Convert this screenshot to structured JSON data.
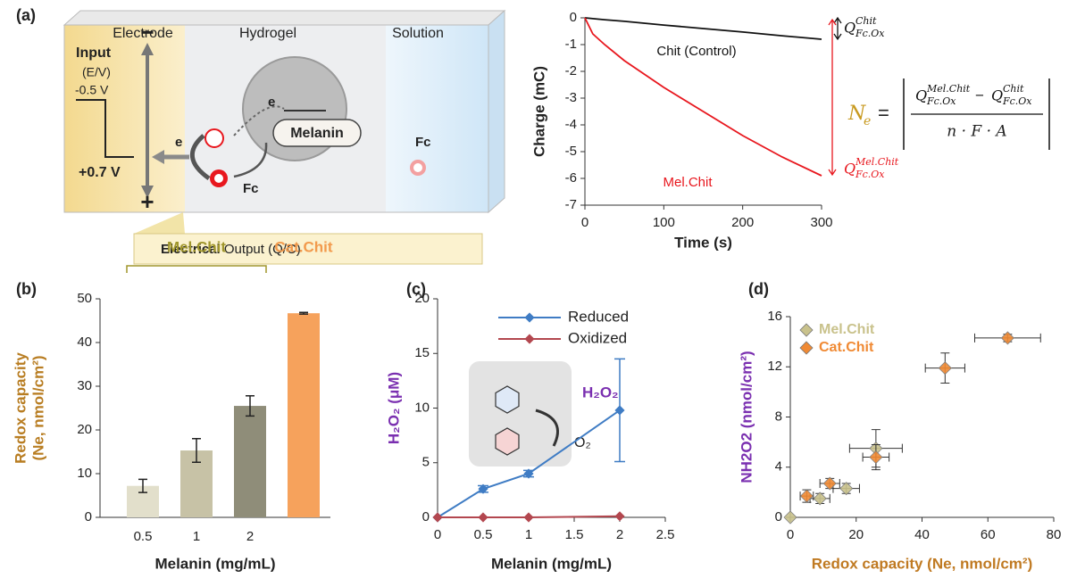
{
  "schematic": {
    "electrode": "Electrode",
    "hydrogel": "Hydrogel",
    "solution": "Solution",
    "input": "Input",
    "input_unit": "(E/V)",
    "v_low": "-0.5 V",
    "v_high": "+0.7 V",
    "minus": "−",
    "plus": "+",
    "electron": "e",
    "melanin": "Melanin",
    "fc": "Fc",
    "output_bold": "Electrical",
    "output_rest": "Output (Q/C)"
  },
  "chart_data": [
    {
      "type": "line",
      "panel": "(a)",
      "xlabel": "Time (s)",
      "ylabel": "Charge (mC)",
      "x": [
        0,
        10,
        25,
        50,
        100,
        150,
        200,
        250,
        300
      ],
      "series": [
        {
          "name": "Chit (Control)",
          "color": "#111111",
          "values": [
            0,
            -0.03,
            -0.07,
            -0.13,
            -0.27,
            -0.4,
            -0.53,
            -0.67,
            -0.8
          ]
        },
        {
          "name": "Mel.Chit",
          "color": "#e8171e",
          "values": [
            0,
            -0.6,
            -1.0,
            -1.6,
            -2.6,
            -3.5,
            -4.4,
            -5.2,
            -5.9
          ]
        }
      ],
      "xlim": [
        0,
        300
      ],
      "xticks": [
        0,
        100,
        200,
        300
      ],
      "ylim": [
        -7,
        0
      ],
      "yticks": [
        0,
        -1,
        -2,
        -3,
        -4,
        -5,
        -6,
        -7
      ],
      "legend": "inline",
      "equation": {
        "lhs": "N",
        "lhs_sub": "e",
        "equals": "=",
        "q": "Q",
        "sup_mel": "Mel.Chit",
        "sub": "Fc.Ox",
        "minus": "−",
        "sup_chit": "Chit",
        "denominator": "n · F · A"
      }
    },
    {
      "type": "bar",
      "panel": "(b)",
      "xlabel": "Melanin (mg/mL)",
      "ylabel": [
        "Redox capacity",
        "(Ne, nmol/cm²)"
      ],
      "ylabel_color": "#b87d22",
      "categories": [
        "0.5",
        "1",
        "2",
        null
      ],
      "values": [
        7.2,
        15.3,
        25.5,
        46.7
      ],
      "errors": [
        1.5,
        2.7,
        2.3,
        0.2
      ],
      "colors": [
        "#e2dfcb",
        "#c7c2a6",
        "#8f8d79",
        "#f6a25c"
      ],
      "groups": [
        {
          "label": "Mel.Chit",
          "color": "#a0962c"
        },
        {
          "label": "Cat.Chit",
          "color": "#f29a4c"
        }
      ],
      "ylim": [
        0,
        50
      ],
      "yticks": [
        0,
        10,
        20,
        30,
        40,
        50
      ]
    },
    {
      "type": "line",
      "panel": "(c)",
      "xlabel": "Melanin (mg/mL)",
      "ylabel": "H₂O₂ (μM)",
      "ylabel_color": "#7a2fb0",
      "x": [
        0,
        0.5,
        1,
        2
      ],
      "series": [
        {
          "name": "Reduced",
          "color": "#3f7cc4",
          "values": [
            0,
            2.6,
            4,
            9.8
          ],
          "errors": [
            0,
            0.3,
            0.3,
            4.7
          ]
        },
        {
          "name": "Oxidized",
          "color": "#b3474f",
          "values": [
            0,
            0,
            0,
            0.1
          ]
        }
      ],
      "xlim": [
        0,
        2.5
      ],
      "xticks": [
        0,
        0.5,
        1,
        1.5,
        2,
        2.5
      ],
      "ylim": [
        0,
        20
      ],
      "yticks": [
        0,
        5,
        10,
        15,
        20
      ],
      "legend": "top",
      "inset": {
        "product": "H₂O₂",
        "oxygen": "O₂"
      }
    },
    {
      "type": "scatter",
      "panel": "(d)",
      "xlabel": "Redox capacity (Ne, nmol/cm²)",
      "xlabel_color": "#c07a22",
      "ylabel": "NH2O2 (nmol/cm²)",
      "ylabel_color": "#7a2fb0",
      "series": [
        {
          "name": "Mel.Chit",
          "color": "#c9c28c",
          "x": [
            0,
            9,
            17,
            26
          ],
          "values": [
            0,
            1.5,
            2.3,
            5.5
          ],
          "xerr": [
            0,
            3,
            4,
            8
          ],
          "yerr": [
            0,
            0.4,
            0.4,
            1.5
          ]
        },
        {
          "name": "Cat.Chit",
          "color": "#f08a34",
          "x": [
            5,
            12,
            26,
            47,
            66
          ],
          "values": [
            1.7,
            2.7,
            4.8,
            11.9,
            14.3
          ],
          "xerr": [
            2,
            3,
            4,
            6,
            10
          ],
          "yerr": [
            0.5,
            0.4,
            1.0,
            1.2,
            0.3
          ]
        }
      ],
      "xlim": [
        0,
        80
      ],
      "xticks": [
        0,
        20,
        40,
        60,
        80
      ],
      "ylim": [
        0,
        16
      ],
      "yticks": [
        0,
        4,
        8,
        12,
        16
      ],
      "legend": "top-left"
    }
  ]
}
